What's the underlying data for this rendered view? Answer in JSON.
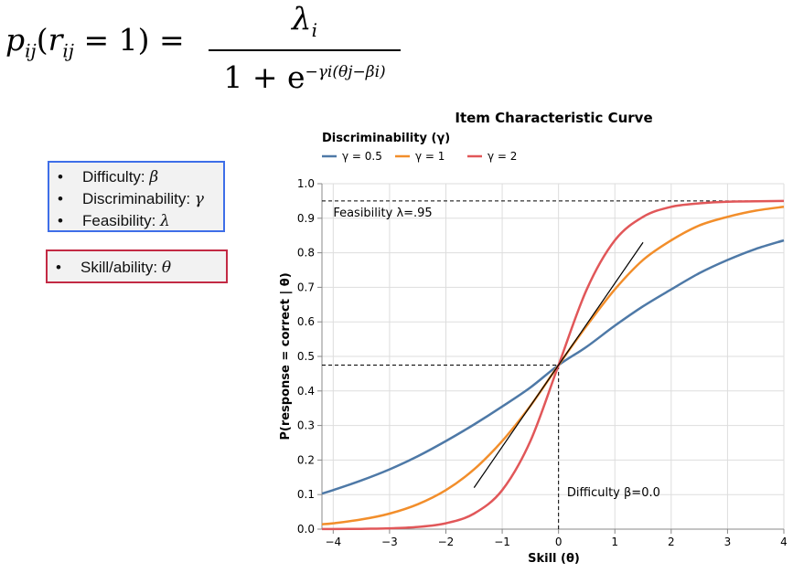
{
  "formula": {
    "lhs_p": "p",
    "lhs_p_sub": "ij",
    "lhs_r": "r",
    "lhs_r_sub": "ij",
    "lhs_rest": " = 1) = ",
    "numerator": "λ",
    "numerator_sub": "i",
    "denominator_base": "1 + e",
    "denominator_exp": "−γi(θj−βi)"
  },
  "parameter_box": {
    "items": [
      {
        "label": "Difficulty: ",
        "symbol": "β"
      },
      {
        "label": "Discriminability: ",
        "symbol": "γ"
      },
      {
        "label": "Feasibility: ",
        "symbol": "λ"
      }
    ],
    "border_color": "#3e6ee8"
  },
  "ability_box": {
    "items": [
      {
        "label": "Skill/ability: ",
        "symbol": "θ"
      }
    ],
    "border_color": "#c32a44"
  },
  "chart_data": {
    "type": "line",
    "title": "Item Characteristic Curve",
    "legend_title": "Discriminability (γ)",
    "legend_position": "top-left",
    "xlabel": "Skill (θ)",
    "ylabel": "P(response = correct | θ)",
    "xlim": [
      -4.2,
      4
    ],
    "ylim": [
      0,
      1
    ],
    "xticks": [
      -4,
      -3,
      -2,
      -1,
      0,
      1,
      2,
      3,
      4
    ],
    "xtick_labels": [
      "−4",
      "−3",
      "−2",
      "−1",
      "0",
      "1",
      "2",
      "3",
      "4"
    ],
    "yticks": [
      0,
      0.1,
      0.2,
      0.3,
      0.4,
      0.5,
      0.6,
      0.7,
      0.8,
      0.9,
      1.0
    ],
    "ytick_labels": [
      "0.0",
      "0.1",
      "0.2",
      "0.3",
      "0.4",
      "0.5",
      "0.6",
      "0.7",
      "0.8",
      "0.9",
      "1.0"
    ],
    "grid": true,
    "x": [
      -4.2,
      -4,
      -3.5,
      -3,
      -2.5,
      -2,
      -1.5,
      -1,
      -0.5,
      0,
      0.5,
      1,
      1.5,
      2,
      2.5,
      3,
      3.5,
      4
    ],
    "series": [
      {
        "name": "γ = 0.5",
        "color": "#4e79a7",
        "values": [
          0.103,
          0.113,
          0.141,
          0.173,
          0.211,
          0.255,
          0.303,
          0.355,
          0.41,
          0.475,
          0.528,
          0.589,
          0.645,
          0.694,
          0.741,
          0.779,
          0.811,
          0.836
        ]
      },
      {
        "name": "γ = 1",
        "color": "#f28e2b",
        "values": [
          0.014,
          0.017,
          0.028,
          0.045,
          0.072,
          0.113,
          0.173,
          0.255,
          0.357,
          0.475,
          0.589,
          0.694,
          0.779,
          0.836,
          0.879,
          0.904,
          0.922,
          0.933
        ]
      },
      {
        "name": "γ = 2",
        "color": "#e15759",
        "values": [
          0.0002,
          0.0003,
          0.0009,
          0.0024,
          0.0064,
          0.017,
          0.045,
          0.113,
          0.255,
          0.475,
          0.694,
          0.836,
          0.904,
          0.933,
          0.943,
          0.948,
          0.949,
          0.95
        ]
      }
    ],
    "tangent_line": {
      "color": "#000000",
      "x": [
        -1.5,
        1.5
      ],
      "y": [
        0.12,
        0.83
      ]
    },
    "reference_lines": [
      {
        "kind": "horizontal",
        "y": 0.95,
        "x_from": -4.2,
        "x_to": 4,
        "style": "dashed"
      },
      {
        "kind": "horizontal",
        "y": 0.475,
        "x_from": -4.2,
        "x_to": 0,
        "style": "dashed"
      },
      {
        "kind": "vertical",
        "x": 0,
        "y_from": 0,
        "y_to": 0.475,
        "style": "dashed"
      }
    ],
    "annotations": [
      {
        "text": "Feasibility λ=.95",
        "x": -4.0,
        "y": 0.905
      },
      {
        "text": "Difficulty β=0.0",
        "x": 0.15,
        "y": 0.095
      }
    ]
  }
}
